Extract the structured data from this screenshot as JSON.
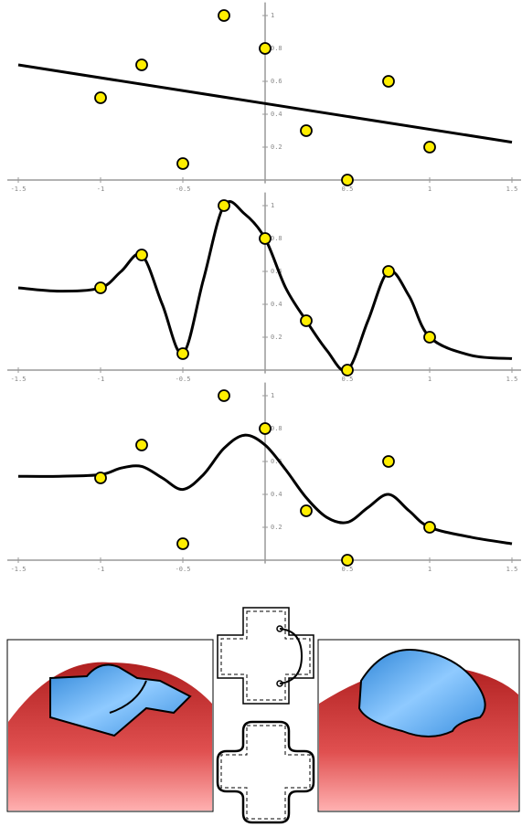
{
  "chart_data": [
    {
      "type": "scatter",
      "x": [
        -1,
        -0.75,
        -0.5,
        -0.25,
        0,
        0.25,
        0.5,
        0.75,
        1
      ],
      "values": [
        0.5,
        0.7,
        0.1,
        1,
        0.8,
        0.3,
        0,
        0.6,
        0.2
      ],
      "color": "#ffee00",
      "fit": {
        "x": [
          -1.5,
          1.5
        ],
        "values": [
          0.7,
          0.23
        ]
      },
      "line_color": "#000000",
      "xlim": [
        -1.5,
        1.5
      ],
      "ylim": [
        -0.02,
        1.08
      ],
      "xticks": [
        -1.5,
        -1,
        -0.5,
        0.5,
        1,
        1.5
      ],
      "yticks": [
        0.2,
        0.4,
        0.6,
        0.8,
        1
      ]
    },
    {
      "type": "scatter",
      "x": [
        -1,
        -0.75,
        -0.5,
        -0.25,
        0,
        0.25,
        0.5,
        0.75,
        1
      ],
      "values": [
        0.5,
        0.7,
        0.1,
        1,
        0.8,
        0.3,
        0,
        0.6,
        0.2
      ],
      "color": "#ffee00",
      "fit": {
        "x": [
          -1.5,
          -1.25,
          -1,
          -0.875,
          -0.75,
          -0.625,
          -0.5,
          -0.375,
          -0.25,
          -0.125,
          0,
          0.125,
          0.25,
          0.375,
          0.5,
          0.625,
          0.75,
          0.875,
          1,
          1.25,
          1.5
        ],
        "values": [
          0.5,
          0.48,
          0.5,
          0.6,
          0.7,
          0.4,
          0.1,
          0.55,
          1,
          0.95,
          0.8,
          0.5,
          0.3,
          0.12,
          0,
          0.3,
          0.6,
          0.45,
          0.2,
          0.09,
          0.07
        ]
      },
      "line_color": "#000000",
      "xlim": [
        -1.5,
        1.5
      ],
      "ylim": [
        -0.02,
        1.08
      ],
      "xticks": [
        -1.5,
        -1,
        -0.5,
        0.5,
        1,
        1.5
      ],
      "yticks": [
        0.2,
        0.4,
        0.6,
        0.8,
        1
      ]
    },
    {
      "type": "scatter",
      "x": [
        -1,
        -0.75,
        -0.5,
        -0.25,
        0,
        0.25,
        0.5,
        0.75,
        1
      ],
      "values": [
        0.5,
        0.7,
        0.1,
        1,
        0.8,
        0.3,
        0,
        0.6,
        0.2
      ],
      "color": "#ffee00",
      "fit": {
        "x": [
          -1.5,
          -1.25,
          -1,
          -0.875,
          -0.75,
          -0.625,
          -0.5,
          -0.375,
          -0.25,
          -0.125,
          0,
          0.125,
          0.25,
          0.375,
          0.5,
          0.625,
          0.75,
          0.875,
          1,
          1.25,
          1.5
        ],
        "values": [
          0.51,
          0.51,
          0.52,
          0.56,
          0.57,
          0.5,
          0.43,
          0.52,
          0.68,
          0.76,
          0.7,
          0.55,
          0.38,
          0.26,
          0.23,
          0.32,
          0.4,
          0.3,
          0.2,
          0.14,
          0.1
        ]
      },
      "line_color": "#000000",
      "xlim": [
        -1.5,
        1.5
      ],
      "ylim": [
        -0.02,
        1.08
      ],
      "xticks": [
        -1.5,
        -1,
        -0.5,
        0.5,
        1,
        1.5
      ],
      "yticks": [
        0.2,
        0.4,
        0.6,
        0.8,
        1
      ]
    }
  ]
}
